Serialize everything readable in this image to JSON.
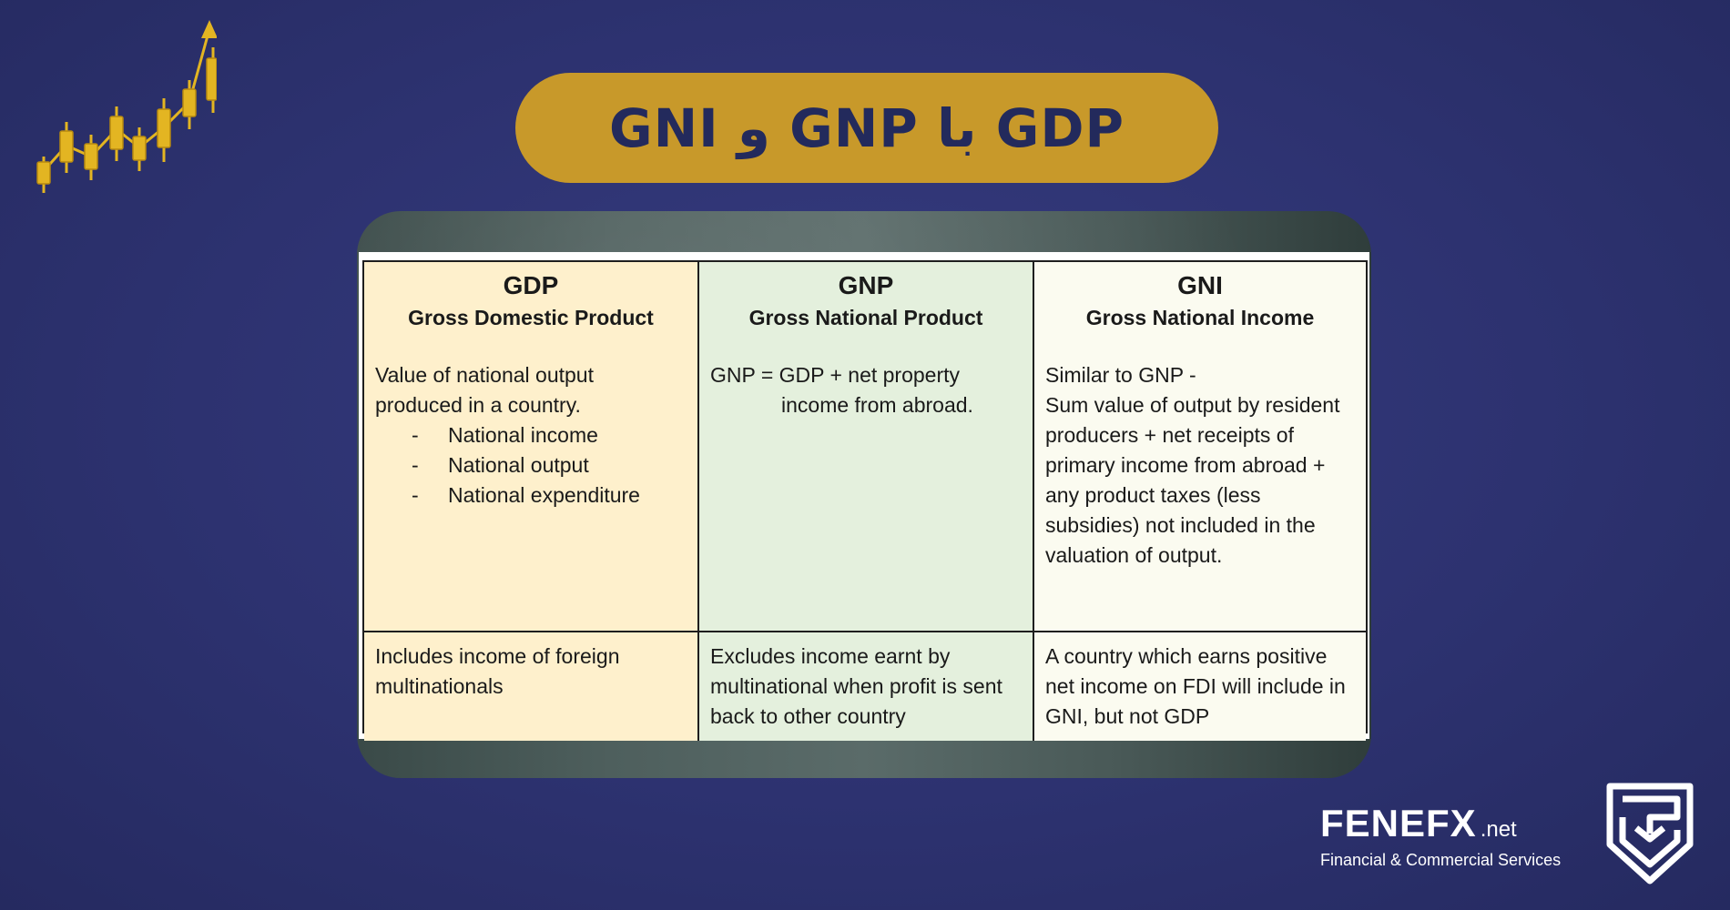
{
  "title": "GDP با GNP و GNI",
  "colors": {
    "background": "#2d3270",
    "title_pill": "#c8992a",
    "title_text": "#232a5c",
    "col_gdp": "#fef0cc",
    "col_gnp": "#e4f0dd",
    "col_gni": "#fbfbf0",
    "chart_icon": "#e3b522"
  },
  "icons": {
    "chart": "candlestick-chart-icon",
    "logo": "fenefx-shield-logo"
  },
  "table": {
    "gdp": {
      "abbr": "GDP",
      "full": "Gross Domestic Product",
      "desc_1": "Value of national output",
      "desc_2": "produced in a country.",
      "bullets": [
        "National income",
        "National output",
        "National expenditure"
      ],
      "note": "Includes income of foreign multinationals"
    },
    "gnp": {
      "abbr": "GNP",
      "full": "Gross National Product",
      "desc_1": "GNP = GDP + net property",
      "desc_2": "income from abroad.",
      "note": "Excludes income earnt by multinational when profit is sent back to other country"
    },
    "gni": {
      "abbr": "GNI",
      "full": "Gross National Income",
      "desc_1": "Similar to GNP -",
      "desc_2": "Sum value of output by resident producers + net receipts of primary income from abroad + any product taxes (less subsidies) not included in the valuation of output.",
      "note": "A country which earns positive net income on FDI will include in GNI, but not GDP"
    }
  },
  "brand": {
    "name": "FENEFX",
    "domain": ".net",
    "tagline": "Financial & Commercial Services"
  }
}
